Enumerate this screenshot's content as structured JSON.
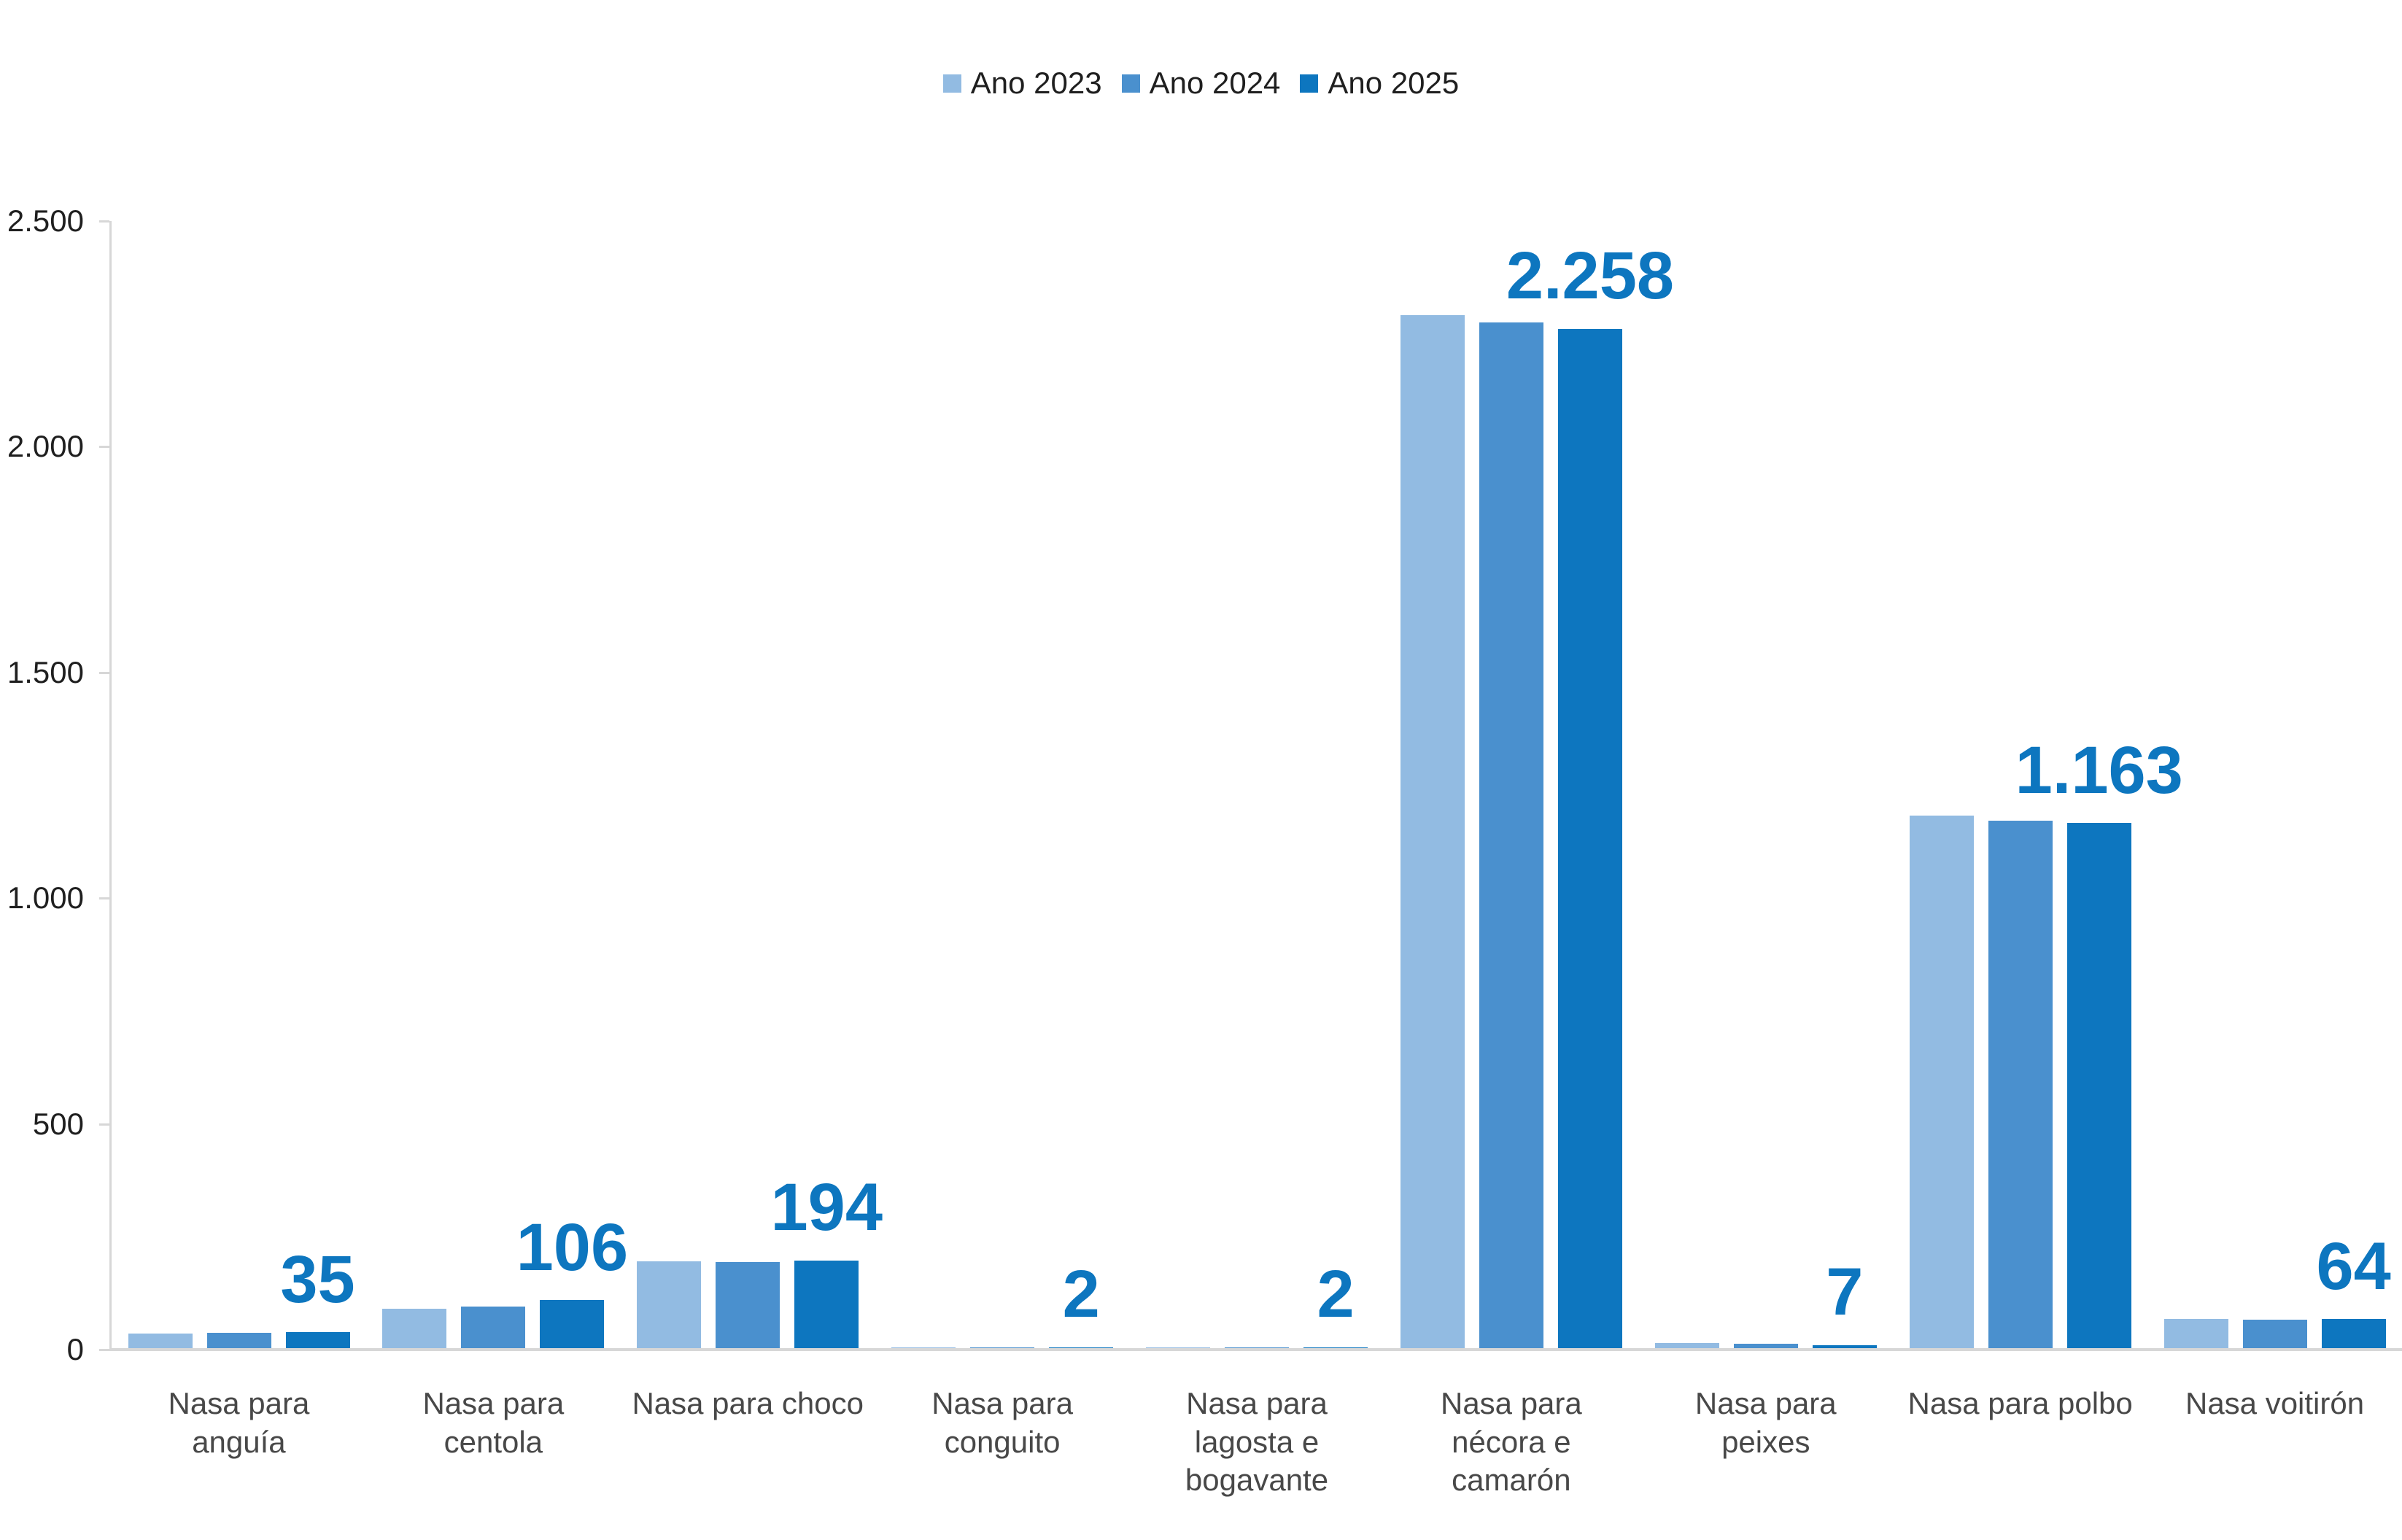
{
  "chart_data": {
    "type": "bar",
    "title": "",
    "legend_position": "top",
    "grid": false,
    "axis_color": "#d7d7d7",
    "tick_text_color": "#1f1f1f",
    "category_text_color": "#484848",
    "categories": [
      "Nasa para\nanguía",
      "Nasa para\ncentola",
      "Nasa para choco",
      "Nasa para\nconguito",
      "Nasa para\nlagosta e\nbogavante",
      "Nasa para\nnécora e\ncamarón",
      "Nasa para\npeixes",
      "Nasa para polbo",
      "Nasa voitirón"
    ],
    "series": [
      {
        "name": "Ano 2023",
        "color": "#92bbe2",
        "values": [
          32,
          88,
          193,
          1,
          1,
          2288,
          11,
          1179,
          65
        ]
      },
      {
        "name": "Ano 2024",
        "color": "#4a90ce",
        "values": [
          34,
          92,
          190,
          1,
          1,
          2272,
          9,
          1169,
          63
        ]
      },
      {
        "name": "Ano 2025",
        "color": "#0d76bf",
        "values": [
          35,
          106,
          194,
          2,
          2,
          2258,
          7,
          1163,
          64
        ]
      }
    ],
    "data_labels": {
      "for_series": "Ano 2025",
      "color": "#0d76bf",
      "values": [
        "35",
        "106",
        "194",
        "2",
        "2",
        "2.258",
        "7",
        "1.163",
        "64"
      ]
    },
    "y_axis": {
      "min": 0,
      "max": 2500,
      "step": 500,
      "tick_labels": [
        "0",
        "500",
        "1.000",
        "1.500",
        "2.000",
        "2.500"
      ]
    }
  }
}
